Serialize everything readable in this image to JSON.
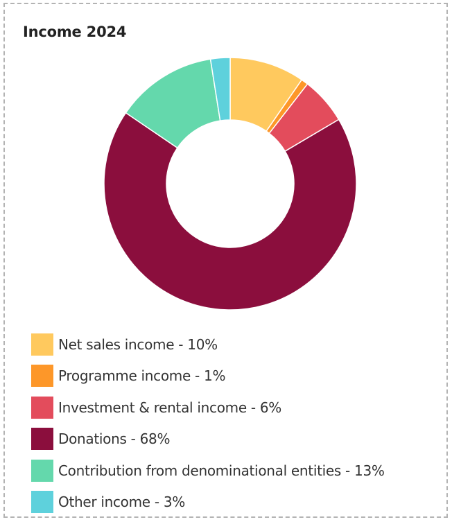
{
  "chart_data": {
    "type": "pie",
    "title": "Income 2024",
    "donut": true,
    "slices": [
      {
        "label": "Net sales income",
        "value": 9.6,
        "display": "10%",
        "color": "#ffc95e"
      },
      {
        "label": "Programme income",
        "value": 0.9,
        "display": "1%",
        "color": "#fd9729"
      },
      {
        "label": "Investment & rental income",
        "value": 6.0,
        "display": "6%",
        "color": "#e34c5c"
      },
      {
        "label": "Donations",
        "value": 68.0,
        "display": "68%",
        "color": "#8b0e3d"
      },
      {
        "label": "Contribution from denominational entities",
        "value": 13.0,
        "display": "13%",
        "color": "#64d8ac"
      },
      {
        "label": "Other income",
        "value": 2.5,
        "display": "3%",
        "color": "#5ed1dc"
      }
    ],
    "legend_position": "bottom",
    "legend_items": [
      "Net sales income - 10%",
      "Programme income - 1%",
      "Investment & rental income - 6%",
      "Donations - 68%",
      "Contribution from denominational entities - 13%",
      "Other income - 3%"
    ]
  }
}
